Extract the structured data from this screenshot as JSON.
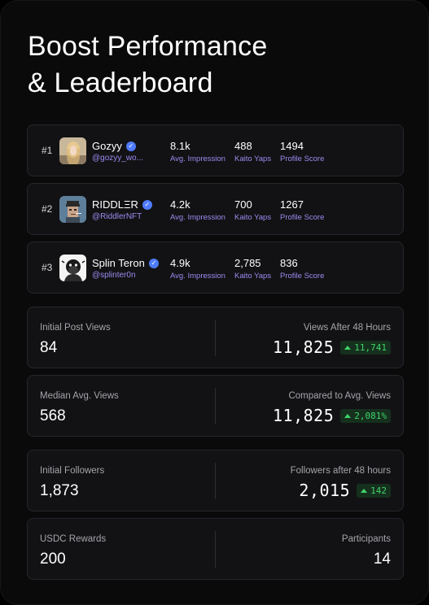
{
  "title_line1": "Boost Performance",
  "title_line2": "& Leaderboard",
  "colors": {
    "accent_purple": "#9a8cf0",
    "positive_green": "#3fd46a",
    "verified_blue": "#4f7cff"
  },
  "leaderboard": [
    {
      "rank": "#1",
      "name": "Gozyy",
      "handle": "@gozyy_wo...",
      "avatar": "avatar-photo-blonde",
      "impression": "8.1k",
      "impression_label": "Avg. Impression",
      "yaps": "488",
      "yaps_label": "Kaito Yaps",
      "score": "1494",
      "score_label": "Profile Score"
    },
    {
      "rank": "#2",
      "name": "RIDDLΞR",
      "handle": "@RiddlerNFT",
      "avatar": "avatar-pixel-punk",
      "impression": "4.2k",
      "impression_label": "Avg. Impression",
      "yaps": "700",
      "yaps_label": "Kaito Yaps",
      "score": "1267",
      "score_label": "Profile Score"
    },
    {
      "rank": "#3",
      "name": "Splin Teron",
      "handle": "@splinter0n",
      "avatar": "avatar-ape-sketch",
      "impression": "4.9k",
      "impression_label": "Avg. Impression",
      "yaps": "2,785",
      "yaps_label": "Kaito Yaps",
      "score": "836",
      "score_label": "Profile Score"
    }
  ],
  "metrics": [
    {
      "left_label": "Initial Post Views",
      "left_value": "84",
      "right_label": "Views After 48 Hours",
      "right_value": "11,825",
      "right_delta": "11,741"
    },
    {
      "left_label": "Median Avg. Views",
      "left_value": "568",
      "right_label": "Compared to Avg. Views",
      "right_value": "11,825",
      "right_delta": "2,081%"
    },
    {
      "left_label": "Initial Followers",
      "left_value": "1,873",
      "right_label": "Followers after 48 hours",
      "right_value": "2,015",
      "right_delta": "142"
    },
    {
      "left_label": "USDC Rewards",
      "left_value": "200",
      "right_label": "Participants",
      "right_value": "14"
    }
  ]
}
